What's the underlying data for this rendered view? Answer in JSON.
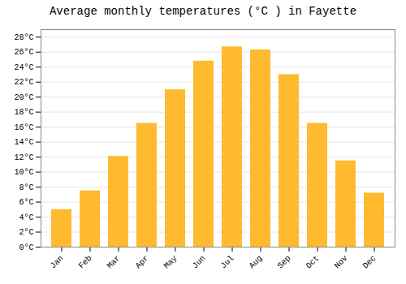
{
  "chart_data": {
    "type": "bar",
    "title": "Average monthly temperatures (°C ) in Fayette",
    "categories": [
      "Jan",
      "Feb",
      "Mar",
      "Apr",
      "May",
      "Jun",
      "Jul",
      "Aug",
      "Sep",
      "Oct",
      "Nov",
      "Dec"
    ],
    "values": [
      5.0,
      7.5,
      12.1,
      16.5,
      21.0,
      24.8,
      26.7,
      26.3,
      23.0,
      16.5,
      11.5,
      7.2
    ],
    "color": "#FFBA30",
    "ylim": [
      0,
      29
    ],
    "yticks": [
      {
        "value": 0,
        "label": "0°C"
      },
      {
        "value": 2,
        "label": "2°C"
      },
      {
        "value": 4,
        "label": "4°C"
      },
      {
        "value": 6,
        "label": "6°C"
      },
      {
        "value": 8,
        "label": "8°C"
      },
      {
        "value": 10,
        "label": "10°C"
      },
      {
        "value": 12,
        "label": "12°C"
      },
      {
        "value": 14,
        "label": "14°C"
      },
      {
        "value": 16,
        "label": "16°C"
      },
      {
        "value": 18,
        "label": "18°C"
      },
      {
        "value": 20,
        "label": "20°C"
      },
      {
        "value": 22,
        "label": "22°C"
      },
      {
        "value": 24,
        "label": "24°C"
      },
      {
        "value": 26,
        "label": "26°C"
      },
      {
        "value": 28,
        "label": "28°C"
      }
    ],
    "grid": true
  }
}
